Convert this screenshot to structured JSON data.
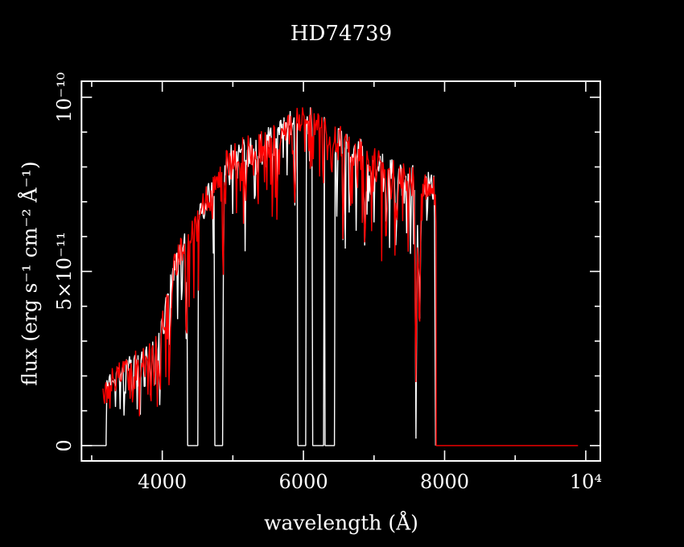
{
  "window": {
    "background": "#000000",
    "foreground": "#ffffff"
  },
  "chart_data": {
    "type": "line",
    "title": "HD74739",
    "xlabel": "wavelength (Å)",
    "ylabel": "flux (erg s⁻¹ cm⁻² Å⁻¹)",
    "x_unit": "Å",
    "flux_unit": "1e-11 erg s⁻¹ cm⁻² Å⁻¹",
    "grid": false,
    "legend": null,
    "xlim": [
      2856,
      10206
    ],
    "ylim_1e11": [
      -0.44,
      10.46
    ],
    "x_ticks": {
      "major": [
        {
          "value": 4000,
          "label": "4000"
        },
        {
          "value": 6000,
          "label": "6000"
        },
        {
          "value": 8000,
          "label": "8000"
        },
        {
          "value": 10000,
          "label": "10⁴"
        }
      ],
      "minor": [
        3000,
        5000,
        7000,
        9000
      ]
    },
    "y_ticks": {
      "major": [
        {
          "value": 0,
          "label": "0"
        },
        {
          "value": 5,
          "label": "5×10⁻¹¹"
        },
        {
          "value": 10,
          "label": "10⁻¹⁰"
        }
      ],
      "minor": [
        1,
        2,
        3,
        4,
        6,
        7,
        8,
        9
      ]
    },
    "sample_step": 11,
    "envelope_1e11": [
      [
        3160,
        1.6
      ],
      [
        3300,
        2.0
      ],
      [
        3450,
        2.15
      ],
      [
        3600,
        2.4
      ],
      [
        3750,
        2.75
      ],
      [
        3900,
        3.1
      ],
      [
        4000,
        3.5
      ],
      [
        4080,
        4.6
      ],
      [
        4150,
        5.0
      ],
      [
        4250,
        5.55
      ],
      [
        4350,
        5.9
      ],
      [
        4450,
        6.3
      ],
      [
        4550,
        6.8
      ],
      [
        4650,
        7.15
      ],
      [
        4750,
        7.6
      ],
      [
        4850,
        7.95
      ],
      [
        4950,
        8.15
      ],
      [
        5050,
        8.3
      ],
      [
        5150,
        8.45
      ],
      [
        5250,
        8.5
      ],
      [
        5350,
        8.55
      ],
      [
        5450,
        8.65
      ],
      [
        5550,
        8.75
      ],
      [
        5650,
        8.9
      ],
      [
        5750,
        9.05
      ],
      [
        5850,
        9.3
      ],
      [
        5950,
        9.45
      ],
      [
        6050,
        9.35
      ],
      [
        6150,
        9.25
      ],
      [
        6250,
        9.1
      ],
      [
        6350,
        8.95
      ],
      [
        6450,
        8.8
      ],
      [
        6550,
        8.7
      ],
      [
        6650,
        8.55
      ],
      [
        6750,
        8.45
      ],
      [
        6850,
        8.3
      ],
      [
        6950,
        8.15
      ],
      [
        7050,
        8.05
      ],
      [
        7150,
        7.95
      ],
      [
        7250,
        7.85
      ],
      [
        7350,
        7.75
      ],
      [
        7450,
        7.65
      ],
      [
        7550,
        7.6
      ],
      [
        7650,
        7.5
      ],
      [
        7750,
        7.45
      ],
      [
        7880,
        7.35
      ]
    ],
    "absorption_dips": [
      [
        3580,
        12,
        0.9
      ],
      [
        3680,
        12,
        1.0
      ],
      [
        3750,
        10,
        1.0
      ],
      [
        3798,
        8,
        1.2
      ],
      [
        3835,
        8,
        1.4
      ],
      [
        3889,
        8,
        1.6
      ],
      [
        3933,
        7,
        2.0
      ],
      [
        3968,
        7,
        2.2
      ],
      [
        4026,
        6,
        0.8
      ],
      [
        4101,
        8,
        2.4
      ],
      [
        4340,
        8,
        2.8
      ],
      [
        4861,
        8,
        3.4
      ],
      [
        5890,
        6,
        1.2
      ],
      [
        6563,
        7,
        3.3
      ],
      [
        6870,
        10,
        2.5
      ],
      [
        7175,
        12,
        1.7
      ],
      [
        7320,
        12,
        1.5
      ],
      [
        7594,
        10,
        5.6
      ],
      [
        7640,
        16,
        3.0
      ]
    ],
    "noise_zones": [
      {
        "upto": 4050,
        "amp": 0.3,
        "p": 0.35,
        "spike": 1.3
      },
      {
        "upto": 4900,
        "amp": 0.4,
        "p": 0.4,
        "spike": 2.2
      },
      {
        "upto": 99999,
        "amp": 0.45,
        "p": 0.42,
        "spike": 2.6
      }
    ],
    "series": [
      {
        "name": "observed-spectrum-white",
        "color": "#ffffff",
        "seed": 7,
        "lead_zero": [
          2856,
          3205
        ],
        "start": 3205,
        "end": 7868,
        "drop_to_zero_at_end": true,
        "zero_gaps": [
          [
            4360,
            4505
          ],
          [
            4744,
            4855
          ],
          [
            5920,
            6033
          ],
          [
            6124,
            6295
          ],
          [
            6305,
            6443
          ]
        ]
      },
      {
        "name": "overlay-spectrum-red",
        "color": "#ff0000",
        "seed": 13,
        "start": 3160,
        "end": 7880,
        "zero_tail": [
          7880,
          9890
        ],
        "zero_gaps": []
      }
    ]
  }
}
